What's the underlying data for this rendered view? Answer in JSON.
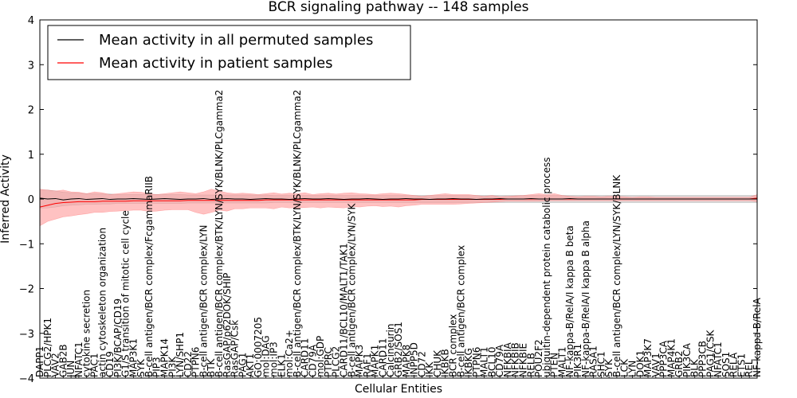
{
  "chart_data": {
    "type": "line",
    "title": "BCR signaling pathway -- 148 samples",
    "xlabel": "Cellular Entities",
    "ylabel": "Inferred Activity",
    "ylim": [
      -4,
      4
    ],
    "yticks": [
      -4,
      -3,
      -2,
      -1,
      0,
      1,
      2,
      3,
      4
    ],
    "ytick_labels": [
      "−4",
      "−3",
      "−2",
      "−1",
      "0",
      "1",
      "2",
      "3",
      "4"
    ],
    "legend": {
      "placement": "top-left",
      "entries": [
        {
          "label": "Mean activity in all permuted samples",
          "color": "#000000"
        },
        {
          "label": "Mean activity in patient samples",
          "color": "#ff0000"
        }
      ]
    },
    "categories": [
      "DAPP1",
      "PLCG2/HPK1",
      "VAV2",
      "GAB2B",
      "JUN",
      "NFATC1",
      "cytokine secretion",
      "PAC1",
      "actin cytoskeleton organization",
      "CD19",
      "PI3K/BCAP/CD19",
      "G1/S transition of mitotic cell cycle",
      "MAP3K1",
      "SYK",
      "B-cell antigen/BCR complex/FcgammaRIIB",
      "PIP3",
      "MAPK14",
      "PI3K",
      "LYN/SHP1",
      "CD22",
      "PTPN6",
      "B-cell antigen/BCR complex/LYN",
      "BTK",
      "B-cell antigen/BCR complex/BTK/LYN/SYK/BLNK/PLCgamma2",
      "RasGAP/p62DOK/SHIP",
      "RasGAP/Csk",
      "PAG1",
      "AKT1",
      "GO:0007205",
      "mol:DAG",
      "mol:IP3",
      "ELK1",
      "mol:Ca2+",
      "B-cell antigen/BCR complex/BTK/LYN/SYK/BLNK/PLCgamma2",
      "CARD11",
      "CD79A",
      "mol:GDP",
      "PTPRC",
      "PLCG2",
      "CARD11/BCL10/MALT1/TAK1",
      "B-cell antigen/BCR complex/LYN/SYK",
      "MAPK3",
      "RAF1",
      "MAPK1",
      "CARD11",
      "Calcineurin",
      "GRB2/SOS1",
      "MAPK8",
      "INPP5D",
      "CD72",
      "IKK",
      "CHUK",
      "IKBKB",
      "BCR complex",
      "B-cell antigen/BCR complex",
      "IKBKG",
      "PTPN6",
      "MALT1",
      "BCL10",
      "CD79A",
      "NFKBIA",
      "NFKBIB",
      "NFKBIE",
      "RELB",
      "POU2F2",
      "ubiquitin-dependent protein catabolic process",
      "PTEN",
      "MALT1",
      "NF-kappa-B/RelA/I kappa B beta",
      "PIK3R1",
      "NF-kappa-B/RelA/I kappa B alpha",
      "RASA1",
      "SHC1",
      "SYK",
      "B-cell antigen/BCR complex/LYN/SYK/BLNK",
      "LCK",
      "LYN",
      "DOK1",
      "MAP3K7",
      "VAV1",
      "PPP3CA",
      "MAP4K1",
      "GRB2",
      "PIK3CA",
      "BLK",
      "PPP3CB",
      "PAG1/CSK",
      "NFATC1",
      "SOS1",
      "RELA",
      "ETS1",
      "REL",
      "NF-kappa-B/RelA"
    ],
    "x_range": [
      0,
      92
    ],
    "series": [
      {
        "name": "Mean activity in all permuted samples",
        "color": "#000000",
        "band_color": "#c8c8c8",
        "values": [
          0.02,
          0.0,
          0.01,
          -0.02,
          0.0,
          0.01,
          -0.01,
          0.0,
          0.01,
          -0.01,
          0.0,
          0.0,
          0.01,
          0.0,
          -0.01,
          0.0,
          0.01,
          0.0,
          -0.01,
          0.0,
          0.0,
          0.01,
          -0.01,
          0.0,
          0.01,
          0.0,
          0.0,
          -0.01,
          0.0,
          0.01,
          0.0,
          0.0,
          -0.01,
          0.0,
          0.01,
          0.0,
          0.0,
          0.01,
          0.0,
          -0.01,
          0.0,
          0.0,
          0.01,
          0.0,
          -0.01,
          0.0,
          0.0,
          0.01,
          0.0,
          0.0,
          -0.01,
          0.0,
          0.0,
          0.01,
          0.0,
          0.0,
          -0.01,
          0.0,
          0.0,
          0.01,
          0.0,
          0.0,
          0.0,
          0.01,
          0.0,
          0.0,
          0.0,
          0.0,
          0.01,
          0.0,
          0.0,
          0.0,
          0.0,
          0.0,
          0.0,
          0.0,
          0.0,
          0.0,
          0.0,
          0.0,
          0.0,
          0.0,
          0.0,
          0.0,
          0.0,
          0.0,
          0.0,
          0.0,
          0.0,
          0.0,
          0.0,
          0.0,
          0.0
        ],
        "upper": [
          0.2,
          0.2,
          0.18,
          0.15,
          0.14,
          0.13,
          0.12,
          0.12,
          0.11,
          0.11,
          0.1,
          0.1,
          0.1,
          0.1,
          0.1,
          0.1,
          0.1,
          0.1,
          0.1,
          0.09,
          0.09,
          0.09,
          0.09,
          0.09,
          0.09,
          0.09,
          0.09,
          0.09,
          0.09,
          0.09,
          0.08,
          0.08,
          0.08,
          0.08,
          0.08,
          0.08,
          0.08,
          0.08,
          0.08,
          0.08,
          0.08,
          0.08,
          0.08,
          0.08,
          0.08,
          0.08,
          0.08,
          0.08,
          0.08,
          0.08,
          0.08,
          0.08,
          0.08,
          0.08,
          0.08,
          0.08,
          0.08,
          0.08,
          0.08,
          0.08,
          0.08,
          0.08,
          0.08,
          0.08,
          0.08,
          0.08,
          0.08,
          0.08,
          0.08,
          0.08,
          0.08,
          0.08,
          0.08,
          0.08,
          0.08,
          0.08,
          0.08,
          0.08,
          0.08,
          0.08,
          0.08,
          0.08,
          0.08,
          0.08,
          0.08,
          0.08,
          0.08,
          0.08,
          0.08,
          0.08,
          0.08,
          0.08,
          0.08
        ],
        "lower": [
          -0.2,
          -0.2,
          -0.18,
          -0.15,
          -0.14,
          -0.13,
          -0.12,
          -0.12,
          -0.11,
          -0.11,
          -0.1,
          -0.1,
          -0.1,
          -0.1,
          -0.1,
          -0.1,
          -0.1,
          -0.1,
          -0.1,
          -0.09,
          -0.09,
          -0.09,
          -0.09,
          -0.09,
          -0.09,
          -0.09,
          -0.09,
          -0.09,
          -0.09,
          -0.09,
          -0.08,
          -0.08,
          -0.08,
          -0.08,
          -0.08,
          -0.08,
          -0.08,
          -0.08,
          -0.08,
          -0.08,
          -0.08,
          -0.08,
          -0.08,
          -0.08,
          -0.08,
          -0.08,
          -0.08,
          -0.08,
          -0.08,
          -0.08,
          -0.08,
          -0.08,
          -0.08,
          -0.08,
          -0.08,
          -0.08,
          -0.08,
          -0.08,
          -0.08,
          -0.08,
          -0.08,
          -0.08,
          -0.08,
          -0.08,
          -0.08,
          -0.08,
          -0.08,
          -0.08,
          -0.08,
          -0.08,
          -0.08,
          -0.08,
          -0.08,
          -0.08,
          -0.08,
          -0.08,
          -0.08,
          -0.08,
          -0.08,
          -0.08,
          -0.08,
          -0.08,
          -0.08,
          -0.08,
          -0.08,
          -0.08,
          -0.08,
          -0.08,
          -0.08,
          -0.08,
          -0.08,
          -0.08,
          -0.08
        ]
      },
      {
        "name": "Mean activity in patient samples",
        "color": "#ff0000",
        "band_color": "#ff9a9a",
        "values": [
          -0.18,
          -0.14,
          -0.1,
          -0.08,
          -0.07,
          -0.06,
          -0.06,
          -0.06,
          -0.05,
          -0.05,
          -0.05,
          -0.05,
          -0.04,
          -0.04,
          -0.04,
          -0.04,
          -0.04,
          -0.04,
          -0.04,
          -0.03,
          -0.03,
          -0.03,
          -0.03,
          -0.03,
          -0.03,
          -0.03,
          -0.03,
          -0.03,
          -0.03,
          -0.02,
          -0.02,
          -0.02,
          -0.02,
          -0.02,
          -0.02,
          -0.02,
          -0.02,
          -0.02,
          -0.02,
          -0.02,
          -0.02,
          -0.02,
          -0.02,
          -0.02,
          -0.02,
          -0.02,
          -0.02,
          -0.02,
          -0.02,
          -0.01,
          -0.01,
          -0.01,
          -0.01,
          -0.01,
          -0.01,
          -0.01,
          -0.01,
          -0.01,
          -0.01,
          -0.01,
          0.0,
          0.0,
          0.0,
          0.0,
          0.0,
          0.0,
          0.0,
          0.0,
          0.0,
          0.0,
          0.0,
          0.0,
          0.0,
          0.0,
          0.0,
          0.0,
          0.0,
          0.0,
          0.0,
          0.0,
          0.0,
          0.0,
          0.0,
          0.0,
          0.0,
          0.0,
          0.0,
          0.0,
          0.0,
          0.0,
          0.0,
          0.0,
          0.02
        ],
        "upper": [
          0.22,
          0.2,
          0.18,
          0.2,
          0.16,
          0.15,
          0.12,
          0.16,
          0.14,
          0.1,
          0.12,
          0.14,
          0.16,
          0.15,
          0.12,
          0.1,
          0.12,
          0.14,
          0.16,
          0.14,
          0.12,
          0.16,
          0.22,
          0.18,
          0.14,
          0.12,
          0.13,
          0.12,
          0.1,
          0.12,
          0.14,
          0.11,
          0.13,
          0.12,
          0.14,
          0.1,
          0.12,
          0.13,
          0.11,
          0.13,
          0.14,
          0.12,
          0.11,
          0.1,
          0.12,
          0.13,
          0.12,
          0.1,
          0.08,
          0.06,
          0.08,
          0.1,
          0.12,
          0.1,
          0.1,
          0.1,
          0.08,
          0.06,
          0.08,
          0.05,
          0.06,
          0.07,
          0.08,
          0.1,
          0.12,
          0.1,
          0.12,
          0.08,
          0.06,
          0.05,
          0.06,
          0.06,
          0.05,
          0.06,
          0.06,
          0.05,
          0.04,
          0.05,
          0.05,
          0.04,
          0.04,
          0.04,
          0.04,
          0.04,
          0.04,
          0.04,
          0.04,
          0.04,
          0.04,
          0.04,
          0.04,
          0.04,
          0.1
        ],
        "lower": [
          -0.6,
          -0.5,
          -0.45,
          -0.4,
          -0.38,
          -0.35,
          -0.33,
          -0.3,
          -0.3,
          -0.28,
          -0.27,
          -0.26,
          -0.25,
          -0.25,
          -0.28,
          -0.27,
          -0.25,
          -0.24,
          -0.24,
          -0.24,
          -0.3,
          -0.34,
          -0.3,
          -0.25,
          -0.27,
          -0.22,
          -0.22,
          -0.2,
          -0.2,
          -0.2,
          -0.22,
          -0.18,
          -0.2,
          -0.2,
          -0.19,
          -0.18,
          -0.2,
          -0.18,
          -0.19,
          -0.2,
          -0.17,
          -0.18,
          -0.16,
          -0.15,
          -0.17,
          -0.16,
          -0.18,
          -0.15,
          -0.14,
          -0.12,
          -0.12,
          -0.12,
          -0.12,
          -0.12,
          -0.11,
          -0.1,
          -0.09,
          -0.08,
          -0.07,
          -0.06,
          -0.05,
          -0.05,
          -0.05,
          -0.05,
          -0.05,
          -0.04,
          -0.04,
          -0.04,
          -0.04,
          -0.04,
          -0.04,
          -0.04,
          -0.04,
          -0.04,
          -0.04,
          -0.04,
          -0.04,
          -0.04,
          -0.04,
          -0.04,
          -0.04,
          -0.04,
          -0.04,
          -0.04,
          -0.04,
          -0.04,
          -0.04,
          -0.04,
          -0.04,
          -0.04,
          -0.04,
          -0.04,
          -0.06
        ]
      }
    ]
  }
}
